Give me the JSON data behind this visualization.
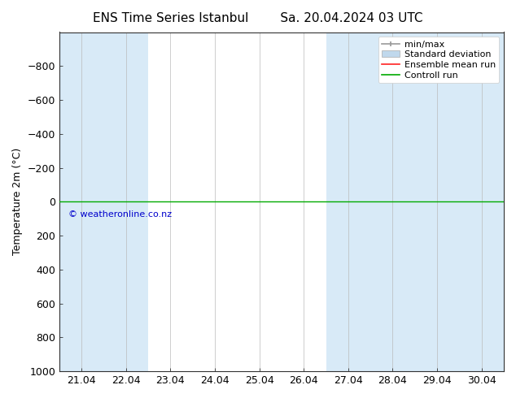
{
  "title1": "ENS Time Series Istanbul",
  "title2": "Sa. 20.04.2024 03 UTC",
  "ylabel": "Temperature 2m (°C)",
  "ylim_bottom": 1000,
  "ylim_top": -1000,
  "yticks": [
    -800,
    -600,
    -400,
    -200,
    0,
    200,
    400,
    600,
    800,
    1000
  ],
  "xtick_labels": [
    "21.04",
    "22.04",
    "23.04",
    "24.04",
    "25.04",
    "26.04",
    "27.04",
    "28.04",
    "29.04",
    "30.04"
  ],
  "xtick_positions": [
    1,
    2,
    3,
    4,
    5,
    6,
    7,
    8,
    9,
    10
  ],
  "shaded_ranges": [
    [
      0.5,
      2.5
    ],
    [
      6.5,
      8.5
    ],
    [
      8.5,
      10.5
    ]
  ],
  "shade_color": "#d8eaf7",
  "background_color": "#ffffff",
  "green_line_y": 0,
  "copyright_text": "© weatheronline.co.nz",
  "copyright_color": "#0000cc",
  "legend_items": [
    "min/max",
    "Standard deviation",
    "Ensemble mean run",
    "Controll run"
  ],
  "minmax_color": "#999999",
  "std_color": "#c0d8ec",
  "ensemble_color": "#ff2222",
  "control_color": "#00aa00",
  "title_fontsize": 11,
  "axis_fontsize": 9,
  "legend_fontsize": 8
}
